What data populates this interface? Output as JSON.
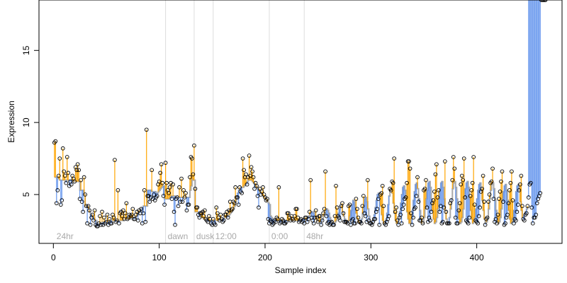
{
  "chart_data": {
    "type": "scatter",
    "title": "",
    "xlabel": "Sample index",
    "ylabel": "Expression",
    "xlim": [
      -13.6,
      480.6
    ],
    "ylim": [
      1.61,
      18.5
    ],
    "xticks": [
      0,
      100,
      200,
      300,
      400
    ],
    "yticks": [
      5,
      10,
      15
    ],
    "grid": false,
    "legend": "none",
    "colors": {
      "points_stroke": "#000000",
      "residual_positive": "#FFA500",
      "residual_negative": "#6495ED",
      "fit_line": "#A9A9A9",
      "separators": "#DDDDDD",
      "phase_labels": "#A9A9A9"
    },
    "phase_boundaries": [
      106,
      133,
      151,
      204,
      237
    ],
    "phase_labels": [
      {
        "x": 3,
        "text": "24hr"
      },
      {
        "x": 108,
        "text": "dawn"
      },
      {
        "x": 135,
        "text": "dusk"
      },
      {
        "x": 153,
        "text": "12:00"
      },
      {
        "x": 206,
        "text": "0:00"
      },
      {
        "x": 239,
        "text": "48hr"
      }
    ],
    "x": [
      1,
      2,
      3,
      4,
      5,
      6,
      7,
      8,
      9,
      10,
      11,
      12,
      13,
      14,
      15,
      16,
      17,
      18,
      19,
      20,
      21,
      22,
      23,
      24,
      25,
      26,
      27,
      28,
      29,
      30,
      31,
      32,
      33,
      34,
      35,
      36,
      37,
      38,
      39,
      40,
      41,
      42,
      43,
      44,
      45,
      46,
      47,
      48,
      49,
      50,
      51,
      52,
      53,
      54,
      55,
      56,
      57,
      58,
      59,
      60,
      61,
      62,
      63,
      64,
      65,
      66,
      67,
      68,
      69,
      70,
      71,
      72,
      73,
      74,
      75,
      76,
      77,
      78,
      79,
      80,
      81,
      82,
      83,
      84,
      85,
      86,
      87,
      88,
      89,
      90,
      91,
      92,
      93,
      94,
      95,
      96,
      97,
      98,
      99,
      100,
      101,
      102,
      103,
      104,
      105,
      106,
      107,
      108,
      109,
      110,
      111,
      112,
      113,
      114,
      115,
      116,
      117,
      118,
      119,
      120,
      121,
      122,
      123,
      124,
      125,
      126,
      127,
      128,
      129,
      130,
      131,
      132,
      133,
      134,
      135,
      136,
      137,
      138,
      139,
      140,
      141,
      142,
      143,
      144,
      145,
      146,
      147,
      148,
      149,
      150,
      151,
      152,
      153,
      154,
      155,
      156,
      157,
      158,
      159,
      160,
      161,
      162,
      163,
      164,
      165,
      166,
      167,
      168,
      169,
      170,
      171,
      172,
      173,
      174,
      175,
      176,
      177,
      178,
      179,
      180,
      181,
      182,
      183,
      184,
      185,
      186,
      187,
      188,
      189,
      190,
      191,
      192,
      193,
      194,
      195,
      196,
      197,
      198,
      199,
      200,
      201,
      202,
      203,
      204,
      205,
      206,
      207,
      208,
      209,
      210,
      211,
      212,
      213,
      214,
      215,
      216,
      217,
      218,
      219,
      220,
      221,
      222,
      223,
      224,
      225,
      226,
      227,
      228,
      229,
      230,
      231,
      232,
      233,
      234,
      235,
      236,
      237,
      238,
      239,
      240,
      241,
      242,
      243,
      244,
      245,
      246,
      247,
      248,
      249,
      250,
      251,
      252,
      253,
      254,
      255,
      256,
      257,
      258,
      259,
      260,
      261,
      262,
      263,
      264,
      265,
      266,
      267,
      268,
      269,
      270,
      271,
      272,
      273,
      274,
      275,
      276,
      277,
      278,
      279,
      280,
      281,
      282,
      283,
      284,
      285,
      286,
      287,
      288,
      289,
      290,
      291,
      292,
      293,
      294,
      295,
      296,
      297,
      298,
      299,
      300,
      301,
      302,
      303,
      304,
      305,
      306,
      307,
      308,
      309,
      310,
      311,
      312,
      313,
      314,
      315,
      316,
      317,
      318,
      319,
      320,
      321,
      322,
      323,
      324,
      325,
      326,
      327,
      328,
      329,
      330,
      331,
      332,
      333,
      334,
      335,
      336,
      337,
      338,
      339,
      340,
      341,
      342,
      343,
      344,
      345,
      346,
      347,
      348,
      349,
      350,
      351,
      352,
      353,
      354,
      355,
      356,
      357,
      358,
      359,
      360,
      361,
      362,
      363,
      364,
      365,
      366,
      367,
      368,
      369,
      370,
      371,
      372,
      373,
      374,
      375,
      376,
      377,
      378,
      379,
      380,
      381,
      382,
      383,
      384,
      385,
      386,
      387,
      388,
      389,
      390,
      391,
      392,
      393,
      394,
      395,
      396,
      397,
      398,
      399,
      400,
      401,
      402,
      403,
      404,
      405,
      406,
      407,
      408,
      409,
      410,
      411,
      412,
      413,
      414,
      415,
      416,
      417,
      418,
      419,
      420,
      421,
      422,
      423,
      424,
      425,
      426,
      427,
      428,
      429,
      430,
      431,
      432,
      433,
      434,
      435,
      436,
      437,
      438,
      439,
      440,
      441,
      442,
      443,
      444,
      445,
      446,
      447,
      448,
      449,
      450,
      451,
      452,
      453,
      454,
      455,
      456,
      457,
      458,
      459,
      460,
      461,
      462,
      463,
      464,
      465
    ],
    "observed": [
      8.6,
      8.7,
      4.4,
      5.3,
      6.3,
      7.5,
      4.3,
      4.6,
      8.2,
      6.6,
      6.3,
      5.8,
      7.6,
      6.5,
      5.6,
      5.9,
      5.7,
      6.3,
      6.1,
      5.9,
      6.9,
      6.7,
      7.1,
      6.7,
      4.7,
      6.0,
      4.5,
      3.8,
      6.2,
      5.0,
      4.2,
      3.0,
      4.2,
      3.9,
      2.9,
      3.4,
      3.6,
      3.2,
      3.9,
      2.9,
      2.8,
      2.8,
      3.0,
      3.5,
      2.9,
      3.8,
      2.9,
      3.4,
      3.0,
      3.1,
      3.6,
      2.9,
      3.3,
      3.0,
      3.0,
      3.6,
      3.4,
      7.4,
      3.1,
      3.2,
      5.3,
      3.0,
      3.7,
      3.8,
      3.5,
      3.9,
      3.3,
      3.7,
      4.4,
      3.3,
      3.4,
      3.6,
      3.5,
      3.6,
      4.0,
      3.3,
      3.3,
      3.6,
      3.8,
      3.2,
      3.9,
      3.7,
      4.0,
      3.0,
      3.7,
      5.3,
      3.1,
      9.5,
      4.9,
      4.9,
      4.5,
      4.8,
      6.7,
      4.7,
      5.0,
      4.6,
      4.8,
      4.9,
      5.7,
      5.9,
      6.5,
      7.1,
      5.8,
      4.9,
      4.3,
      7.2,
      5.8,
      5.3,
      5.1,
      5.5,
      5.8,
      4.7,
      5.7,
      3.8,
      2.9,
      4.7,
      4.8,
      4.2,
      5.5,
      4.5,
      6.1,
      4.5,
      5.3,
      4.8,
      5.1,
      3.9,
      4.3,
      4.3,
      6.2,
      7.6,
      7.5,
      6.4,
      8.4,
      5.4,
      4.1,
      4.1,
      3.6,
      3.4,
      3.7,
      3.7,
      3.8,
      3.5,
      3.9,
      3.3,
      3.2,
      3.1,
      3.5,
      3.3,
      3.0,
      2.9,
      3.3,
      3.0,
      2.9,
      4.1,
      3.7,
      3.4,
      3.2,
      3.6,
      3.3,
      3.1,
      3.2,
      3.6,
      3.6,
      3.8,
      3.4,
      3.9,
      4.5,
      3.9,
      4.0,
      4.5,
      4.4,
      5.5,
      4.8,
      4.8,
      4.3,
      5.5,
      5.2,
      5.1,
      7.5,
      6.7,
      6.2,
      6.4,
      5.7,
      6.2,
      7.7,
      6.3,
      6.9,
      6.6,
      6.2,
      5.4,
      5.8,
      5.6,
      4.9,
      4.1,
      5.4,
      5.0,
      5.2,
      5.5,
      5.0,
      4.8,
      4.6,
      4.7,
      3.3,
      3.0,
      3.2,
      3.1,
      2.9,
      3.0,
      3.2,
      3.1,
      3.4,
      3.3,
      5.5,
      3.0,
      3.1,
      3.3,
      3.2,
      3.0,
      3.0,
      3.1,
      3.7,
      3.7,
      3.4,
      3.2,
      3.5,
      3.3,
      3.2,
      3.5,
      4.0,
      4.0,
      3.4,
      3.1,
      3.2,
      3.3,
      3.1,
      3.2,
      3.0,
      3.4,
      3.4,
      3.1,
      3.3,
      3.8,
      6.0,
      3.4,
      3.2,
      3.0,
      3.4,
      3.9,
      3.4,
      3.1,
      3.5,
      3.5,
      2.9,
      3.2,
      3.7,
      4.0,
      6.6,
      3.5,
      3.0,
      3.1,
      2.9,
      3.0,
      3.1,
      2.9,
      2.9,
      3.5,
      5.6,
      4.1,
      3.5,
      3.4,
      3.2,
      4.2,
      4.4,
      3.7,
      3.1,
      3.1,
      3.1,
      3.0,
      4.2,
      4.3,
      2.9,
      3.2,
      3.3,
      3.0,
      3.0,
      4.7,
      4.0,
      3.4,
      3.1,
      3.1,
      3.0,
      4.2,
      4.9,
      3.7,
      3.5,
      3.1,
      6.0,
      3.2,
      3.0,
      3.0,
      2.9,
      3.1,
      3.3,
      3.3,
      3.8,
      4.0,
      4.7,
      2.9,
      5.0,
      5.1,
      5.6,
      4.2,
      3.0,
      2.9,
      3.1,
      3.3,
      3.5,
      5.4,
      5.3,
      5.9,
      5.8,
      7.5,
      3.8,
      4.1,
      3.2,
      2.9,
      3.4,
      3.6,
      3.0,
      4.0,
      4.3,
      4.7,
      4.8,
      5.8,
      7.3,
      7.3,
      6.8,
      3.7,
      2.9,
      3.4,
      4.0,
      4.1,
      4.9,
      6.2,
      4.5,
      3.2,
      3.2,
      3.4,
      3.0,
      5.3,
      5.4,
      6.0,
      4.1,
      3.1,
      3.4,
      3.2,
      3.8,
      4.4,
      4.6,
      5.2,
      6.4,
      7.1,
      4.8,
      5.3,
      3.8,
      4.2,
      3.0,
      3.1,
      4.1,
      7.3,
      3.8,
      3.0,
      3.0,
      3.0,
      4.4,
      4.6,
      6.0,
      7.6,
      6.8,
      3.4,
      3.0,
      3.0,
      3.9,
      4.4,
      5.7,
      6.3,
      6.0,
      7.5,
      4.8,
      3.2,
      3.1,
      3.0,
      3.4,
      4.9,
      5.3,
      5.8,
      7.6,
      4.3,
      3.2,
      3.1,
      3.0,
      3.5,
      4.1,
      5.2,
      5.4,
      6.3,
      4.5,
      2.9,
      3.3,
      3.4,
      4.5,
      5.0,
      5.8,
      5.9,
      6.8,
      4.7,
      3.1,
      3.3,
      3.0,
      3.6,
      4.7,
      5.2,
      5.9,
      6.6,
      4.5,
      2.9,
      3.0,
      3.4,
      3.6,
      4.4,
      5.3,
      5.8,
      6.6,
      4.6,
      3.0,
      3.3,
      3.2,
      3.8,
      4.3,
      5.3,
      5.7,
      6.3,
      4.2,
      3.3,
      3.2,
      3.6,
      3.7,
      4.2,
      4.8,
      5.7,
      5.8,
      4.1,
      3.0,
      3.4,
      3.4,
      3.6,
      4.4,
      4.7,
      4.9,
      5.1
    ],
    "fitted": [
      6.2,
      6.2,
      6.2,
      6.1,
      6.1,
      6.0,
      6.0,
      6.0,
      6.0,
      6.0,
      6.0,
      6.0,
      6.0,
      6.0,
      6.0,
      6.0,
      6.0,
      6.0,
      5.9,
      5.9,
      5.9,
      5.9,
      5.9,
      5.9,
      5.3,
      5.3,
      5.3,
      5.3,
      5.0,
      4.2,
      4.2,
      4.2,
      4.0,
      3.8,
      3.6,
      3.6,
      3.4,
      3.4,
      3.2,
      3.2,
      3.0,
      3.0,
      3.0,
      3.0,
      3.0,
      3.1,
      3.1,
      3.1,
      3.1,
      3.1,
      3.1,
      3.1,
      3.2,
      3.2,
      3.2,
      3.2,
      3.2,
      3.2,
      3.2,
      3.2,
      3.2,
      3.2,
      3.2,
      3.2,
      3.2,
      3.3,
      3.3,
      3.3,
      3.3,
      3.3,
      3.3,
      3.3,
      3.4,
      3.4,
      3.4,
      3.4,
      3.4,
      3.5,
      3.6,
      3.7,
      3.8,
      3.9,
      4.0,
      4.1,
      4.2,
      4.2,
      4.2,
      4.2,
      5.3,
      5.3,
      5.3,
      5.3,
      5.2,
      5.2,
      5.2,
      5.2,
      5.1,
      5.1,
      5.2,
      5.3,
      5.4,
      5.5,
      5.6,
      5.6,
      4.7,
      4.7,
      4.7,
      4.7,
      4.7,
      4.8,
      4.9,
      4.9,
      4.9,
      4.9,
      4.8,
      4.8,
      4.8,
      4.8,
      4.8,
      4.8,
      4.8,
      4.8,
      4.8,
      4.8,
      4.8,
      4.8,
      4.8,
      4.8,
      5.3,
      5.6,
      6.1,
      6.0,
      6.0,
      3.8,
      3.8,
      3.8,
      3.8,
      3.6,
      3.6,
      3.4,
      3.4,
      3.3,
      3.3,
      3.3,
      3.3,
      3.2,
      3.2,
      3.2,
      3.2,
      3.2,
      3.2,
      3.2,
      3.2,
      3.2,
      3.2,
      3.2,
      3.3,
      3.3,
      3.3,
      3.3,
      3.4,
      3.4,
      3.4,
      3.5,
      3.5,
      3.6,
      3.7,
      3.8,
      3.9,
      4.0,
      4.2,
      4.5,
      4.8,
      5.1,
      5.3,
      5.4,
      5.5,
      5.5,
      5.5,
      5.6,
      5.7,
      5.8,
      5.9,
      6.0,
      6.0,
      6.0,
      6.0,
      5.9,
      5.8,
      5.7,
      5.6,
      5.5,
      5.4,
      5.3,
      5.2,
      5.1,
      5.0,
      4.9,
      4.8,
      4.7,
      4.6,
      4.5,
      4.4,
      4.3,
      3.5,
      3.4,
      3.3,
      3.3,
      3.2,
      3.2,
      3.2,
      3.2,
      3.2,
      3.2,
      3.2,
      3.2,
      3.2,
      3.2,
      3.2,
      3.2,
      3.2,
      3.2,
      3.2,
      3.2,
      3.2,
      3.2,
      3.2,
      3.2,
      3.2,
      3.2,
      3.2,
      3.2,
      3.2,
      3.3,
      3.3,
      3.3,
      3.3,
      3.3,
      3.3,
      3.4,
      3.5,
      3.6,
      3.7,
      3.8,
      3.8,
      3.7,
      3.5,
      3.3,
      3.2,
      3.1,
      3.1,
      3.1,
      3.2,
      3.3,
      3.5,
      3.7,
      3.9,
      4.0,
      3.9,
      3.7,
      3.4,
      3.2,
      3.1,
      3.0,
      3.0,
      3.1,
      3.2,
      3.4,
      3.7,
      4.0,
      4.2,
      4.1,
      3.8,
      3.5,
      3.3,
      3.1,
      3.0,
      3.1,
      3.2,
      3.5,
      3.9,
      4.3,
      4.6,
      4.5,
      4.1,
      3.7,
      3.3,
      3.1,
      3.0,
      3.1,
      3.3,
      3.7,
      4.2,
      4.7,
      4.8,
      4.5,
      4.0,
      3.5,
      3.1,
      3.0,
      3.0,
      3.2,
      3.6,
      4.1,
      4.6,
      5.0,
      5.1,
      4.8,
      4.2,
      3.6,
      3.2,
      3.0,
      3.0,
      3.2,
      3.7,
      4.3,
      4.9,
      5.3,
      5.4,
      5.1,
      4.4,
      3.7,
      3.2,
      3.0,
      3.0,
      3.3,
      3.8,
      4.4,
      5.0,
      5.5,
      5.6,
      5.3,
      4.6,
      3.8,
      3.3,
      3.0,
      3.0,
      3.3,
      3.9,
      4.6,
      5.2,
      5.7,
      5.8,
      5.4,
      4.7,
      3.9,
      3.3,
      3.0,
      3.0,
      3.4,
      4.0,
      4.7,
      5.3,
      5.8,
      5.9,
      5.5,
      4.7,
      3.9,
      3.3,
      3.0,
      3.1,
      3.4,
      4.0,
      4.7,
      5.4,
      5.8,
      5.9,
      5.5,
      4.7,
      3.9,
      3.3,
      3.0,
      3.1,
      3.4,
      4.0,
      4.7,
      5.4,
      5.8,
      5.9,
      5.5,
      4.7,
      3.9,
      3.3,
      3.0,
      3.1,
      3.4,
      4.0,
      4.7,
      5.4,
      5.8,
      5.9,
      5.5,
      4.7,
      3.9,
      3.3,
      3.0,
      3.1,
      3.4,
      4.0,
      4.7,
      5.3,
      5.7,
      5.8,
      5.4,
      4.6,
      3.9,
      3.3,
      3.0,
      3.1,
      3.4,
      4.0,
      4.7,
      5.3,
      5.7,
      5.8,
      5.4,
      4.6,
      3.9,
      3.3,
      3.0,
      3.1,
      3.4,
      4.0,
      4.7,
      5.2,
      5.6,
      5.7,
      5.3,
      4.6,
      3.9,
      3.3,
      3.0,
      3.1,
      3.4,
      3.9,
      4.6,
      5.2,
      5.6,
      5.7,
      5.3,
      4.5,
      3.9,
      3.4,
      3.5,
      3.6,
      3.8,
      4.0,
      4.1
    ]
  }
}
